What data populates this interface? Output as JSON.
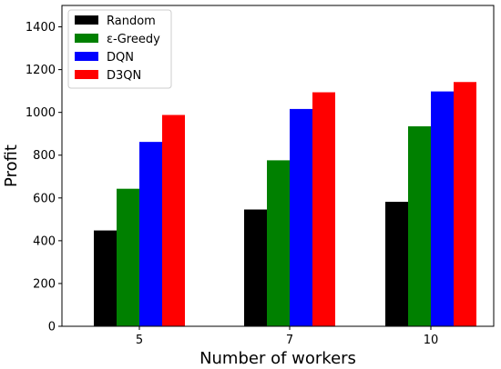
{
  "chart_data": {
    "type": "bar",
    "title": "",
    "xlabel": "Number of workers",
    "ylabel": "Profit",
    "categories": [
      "5",
      "7",
      "10"
    ],
    "ylim": [
      0,
      1500
    ],
    "yticks": [
      0,
      200,
      400,
      600,
      800,
      1000,
      1200,
      1400
    ],
    "grid": false,
    "legend_position": "top-left",
    "series": [
      {
        "name": "Random",
        "color": "#000000",
        "values": [
          448,
          546,
          582
        ]
      },
      {
        "name": "ε-Greedy",
        "color": "#008000",
        "values": [
          643,
          776,
          935
        ]
      },
      {
        "name": "DQN",
        "color": "#0000ff",
        "values": [
          862,
          1016,
          1098
        ]
      },
      {
        "name": "D3QN",
        "color": "#ff0000",
        "values": [
          988,
          1094,
          1142
        ]
      }
    ]
  }
}
